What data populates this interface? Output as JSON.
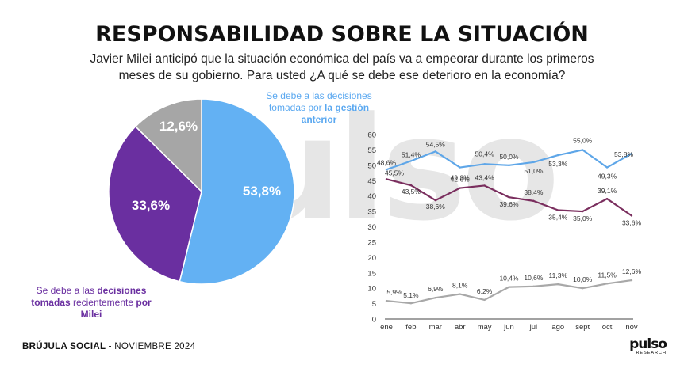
{
  "header": {
    "title": "RESPONSABILIDAD SOBRE LA SITUACIÓN",
    "subtitle": "Javier Milei anticipó que la situación económica del país va a empeorar durante los primeros meses de su gobierno. Para usted ¿A qué se debe ese deterioro en la economía?"
  },
  "watermark_text": "pulso",
  "pie_labels": {
    "blue_plain": "Se debe a las decisiones tomadas por ",
    "blue_bold": "la gestión anterior",
    "purple_plain_1": "Se debe a las ",
    "purple_bold_1": "decisiones tomadas",
    "purple_plain_2": " recientemente ",
    "purple_bold_2": "por Milei"
  },
  "footer": {
    "left_bold": "BRÚJULA SOCIAL - ",
    "left_plain": "NOVIEMBRE 2024",
    "logo_word": "pulso",
    "logo_sub": "RESEARCH"
  },
  "colors": {
    "blue": "#63b1f3",
    "purple": "#6a2fa0",
    "gray": "#a6a6a6",
    "line_blue": "#5ea6e8",
    "line_purple": "#7a2e5e",
    "line_gray": "#a8a8a8"
  },
  "chart_data": [
    {
      "type": "pie",
      "slices": [
        {
          "label": "53,8%",
          "value": 53.8,
          "color": "#63b1f3"
        },
        {
          "label": "33,6%",
          "value": 33.6,
          "color": "#6a2fa0"
        },
        {
          "label": "12,6%",
          "value": 12.6,
          "color": "#a6a6a6"
        }
      ]
    },
    {
      "type": "line",
      "categories": [
        "ene",
        "feb",
        "mar",
        "abr",
        "may",
        "jun",
        "jul",
        "ago",
        "sept",
        "oct",
        "nov"
      ],
      "ylim": [
        0,
        60
      ],
      "yticks": [
        0,
        5,
        10,
        15,
        20,
        25,
        30,
        35,
        40,
        45,
        50,
        55,
        60
      ],
      "grid": false,
      "series": [
        {
          "color": "#5ea6e8",
          "values": [
            48.6,
            51.4,
            54.5,
            49.3,
            50.4,
            50.0,
            51.0,
            53.3,
            55.0,
            49.3,
            53.8
          ],
          "labels": [
            "48,6%",
            "51,4%",
            "54,5%",
            "49,3%",
            "50,4%",
            "50,0%",
            "51,0%",
            "53,3%",
            "55,0%",
            "49,3%",
            "53,8%"
          ]
        },
        {
          "color": "#7a2e5e",
          "values": [
            45.5,
            43.5,
            38.6,
            42.6,
            43.4,
            39.6,
            38.4,
            35.4,
            35.0,
            39.1,
            33.6
          ],
          "labels": [
            "45,5%",
            "43,5%",
            "38,6%",
            "42,6%",
            "43,4%",
            "39,6%",
            "38,4%",
            "35,4%",
            "35,0%",
            "39,1%",
            "33,6%"
          ]
        },
        {
          "color": "#a8a8a8",
          "values": [
            5.9,
            5.1,
            6.9,
            8.1,
            6.2,
            10.4,
            10.6,
            11.3,
            10.0,
            11.5,
            12.6
          ],
          "labels": [
            "5,9%",
            "5,1%",
            "6,9%",
            "8,1%",
            "6,2%",
            "10,4%",
            "10,6%",
            "11,3%",
            "10,0%",
            "11,5%",
            "12,6%"
          ]
        }
      ]
    }
  ]
}
